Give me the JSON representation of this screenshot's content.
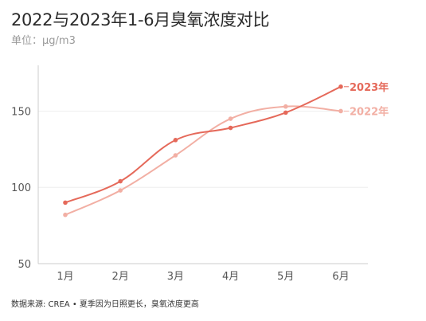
{
  "title": "2022与2023年1-6月臭氧浓度对比",
  "subtitle": "单位：μg/m3",
  "source": "数据来源: CREA • 夏季因为日照更长，臭氧浓度更高",
  "colors": {
    "2023": "#e5695a",
    "2022": "#f2afa4",
    "grid": "#eeeeee",
    "axis": "#cccccc"
  },
  "chart_data": {
    "type": "line",
    "categories": [
      "1月",
      "2月",
      "3月",
      "4月",
      "5月",
      "6月"
    ],
    "series": [
      {
        "name": "2023年",
        "values": [
          90,
          104,
          131,
          139,
          149,
          166
        ]
      },
      {
        "name": "2022年",
        "values": [
          82,
          98,
          121,
          145,
          153,
          150
        ]
      }
    ],
    "ylim": [
      50,
      180
    ],
    "yticks": [
      50,
      100,
      150
    ],
    "grid": true,
    "legend": "direct-labels-right"
  }
}
